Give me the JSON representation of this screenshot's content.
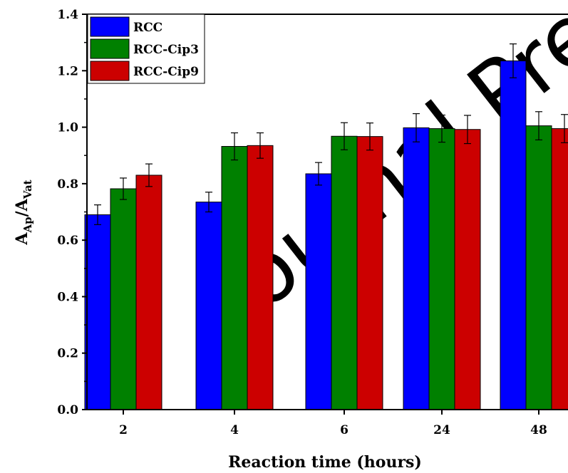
{
  "watermark": {
    "text": "Journal Pre-proof",
    "color": "#e9e9e9"
  },
  "chart_data": {
    "type": "bar",
    "categories": [
      "2",
      "4",
      "6",
      "24",
      "48"
    ],
    "xlabel": "Reaction time (hours)",
    "ylabel": {
      "base1": "A",
      "sub1": "Ap",
      "slash": "/",
      "base2": "A",
      "sub2": "Vat"
    },
    "ylim": [
      0,
      1.4
    ],
    "yticks": [
      "0.0",
      "0.2",
      "0.4",
      "0.6",
      "0.8",
      "1.0",
      "1.2",
      "1.4"
    ],
    "grid": false,
    "legend_position": "top-left",
    "series": [
      {
        "name": "RCC",
        "color": "#0000ff",
        "values": [
          0.69,
          0.735,
          0.835,
          0.998,
          1.235
        ],
        "errors": [
          0.035,
          0.035,
          0.04,
          0.05,
          0.06
        ]
      },
      {
        "name": "RCC-Cip3",
        "color": "#008000",
        "values": [
          0.782,
          0.932,
          0.968,
          0.995,
          1.005
        ],
        "errors": [
          0.038,
          0.048,
          0.048,
          0.048,
          0.05
        ]
      },
      {
        "name": "RCC-Cip9",
        "color": "#cc0000",
        "values": [
          0.83,
          0.935,
          0.967,
          0.992,
          0.995
        ],
        "errors": [
          0.04,
          0.045,
          0.048,
          0.05,
          0.05
        ]
      }
    ]
  }
}
